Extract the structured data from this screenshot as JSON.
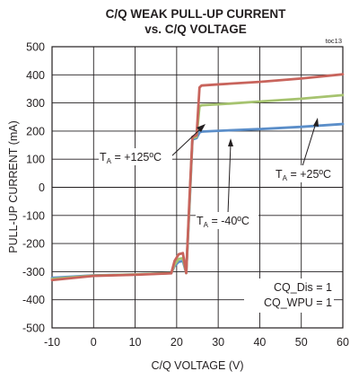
{
  "chart_data": {
    "type": "line",
    "title_line1": "C/Q WEAK PULL-UP CURRENT",
    "title_line2": "vs. C/Q VOLTAGE",
    "tag": "toc13",
    "xlabel": "C/Q VOLTAGE (V)",
    "ylabel": "PULL-UP CURRENT (mA)",
    "xlim": [
      -10,
      60
    ],
    "ylim": [
      -500,
      500
    ],
    "xticks": [
      "-10",
      "0",
      "10",
      "20",
      "30",
      "40",
      "50",
      "60"
    ],
    "yticks": [
      "500",
      "400",
      "300",
      "200",
      "100",
      "0",
      "-100",
      "-200",
      "-300",
      "-400",
      "-500"
    ],
    "grid": true,
    "series": [
      {
        "name": "T_A = -40°C",
        "color": "#5b8ec9",
        "x": [
          -10,
          0,
          10,
          18.7,
          19.5,
          20.5,
          21.5,
          22.3,
          23.1,
          23.8,
          24.8,
          25.5,
          26,
          30,
          40,
          50,
          60
        ],
        "y": [
          -322,
          -313,
          -310,
          -305,
          -280,
          -265,
          -262,
          -305,
          -60,
          170,
          175,
          195,
          198,
          201,
          207,
          215,
          225
        ]
      },
      {
        "name": "T_A = +25°C",
        "color": "#a6c36f",
        "x": [
          -10,
          0,
          10,
          18.7,
          19.5,
          20.5,
          21.5,
          22.3,
          23.1,
          23.8,
          24.8,
          25.5,
          26,
          30,
          40,
          50,
          60
        ],
        "y": [
          -326,
          -314,
          -310,
          -305,
          -275,
          -255,
          -252,
          -305,
          -50,
          175,
          180,
          288,
          292,
          295,
          305,
          315,
          328
        ]
      },
      {
        "name": "T_A = +125°C",
        "color": "#c8645c",
        "x": [
          -10,
          0,
          10,
          18.7,
          19.5,
          20.5,
          21.5,
          22.3,
          23.1,
          23.8,
          24.8,
          25.5,
          26,
          30,
          40,
          50,
          60
        ],
        "y": [
          -330,
          -315,
          -311,
          -306,
          -262,
          -238,
          -234,
          -305,
          -35,
          180,
          185,
          355,
          362,
          366,
          375,
          387,
          402
        ]
      }
    ],
    "annotations": {
      "t125": {
        "prefix": "T",
        "sub": "A",
        "rest": " = +125ºC"
      },
      "t25": {
        "prefix": "T",
        "sub": "A",
        "rest": " = +25ºC"
      },
      "tm40": {
        "prefix": "T",
        "sub": "A",
        "rest": " = -40ºC"
      },
      "cond1": "CQ_Dis = 1",
      "cond2": "CQ_WPU = 1"
    }
  }
}
